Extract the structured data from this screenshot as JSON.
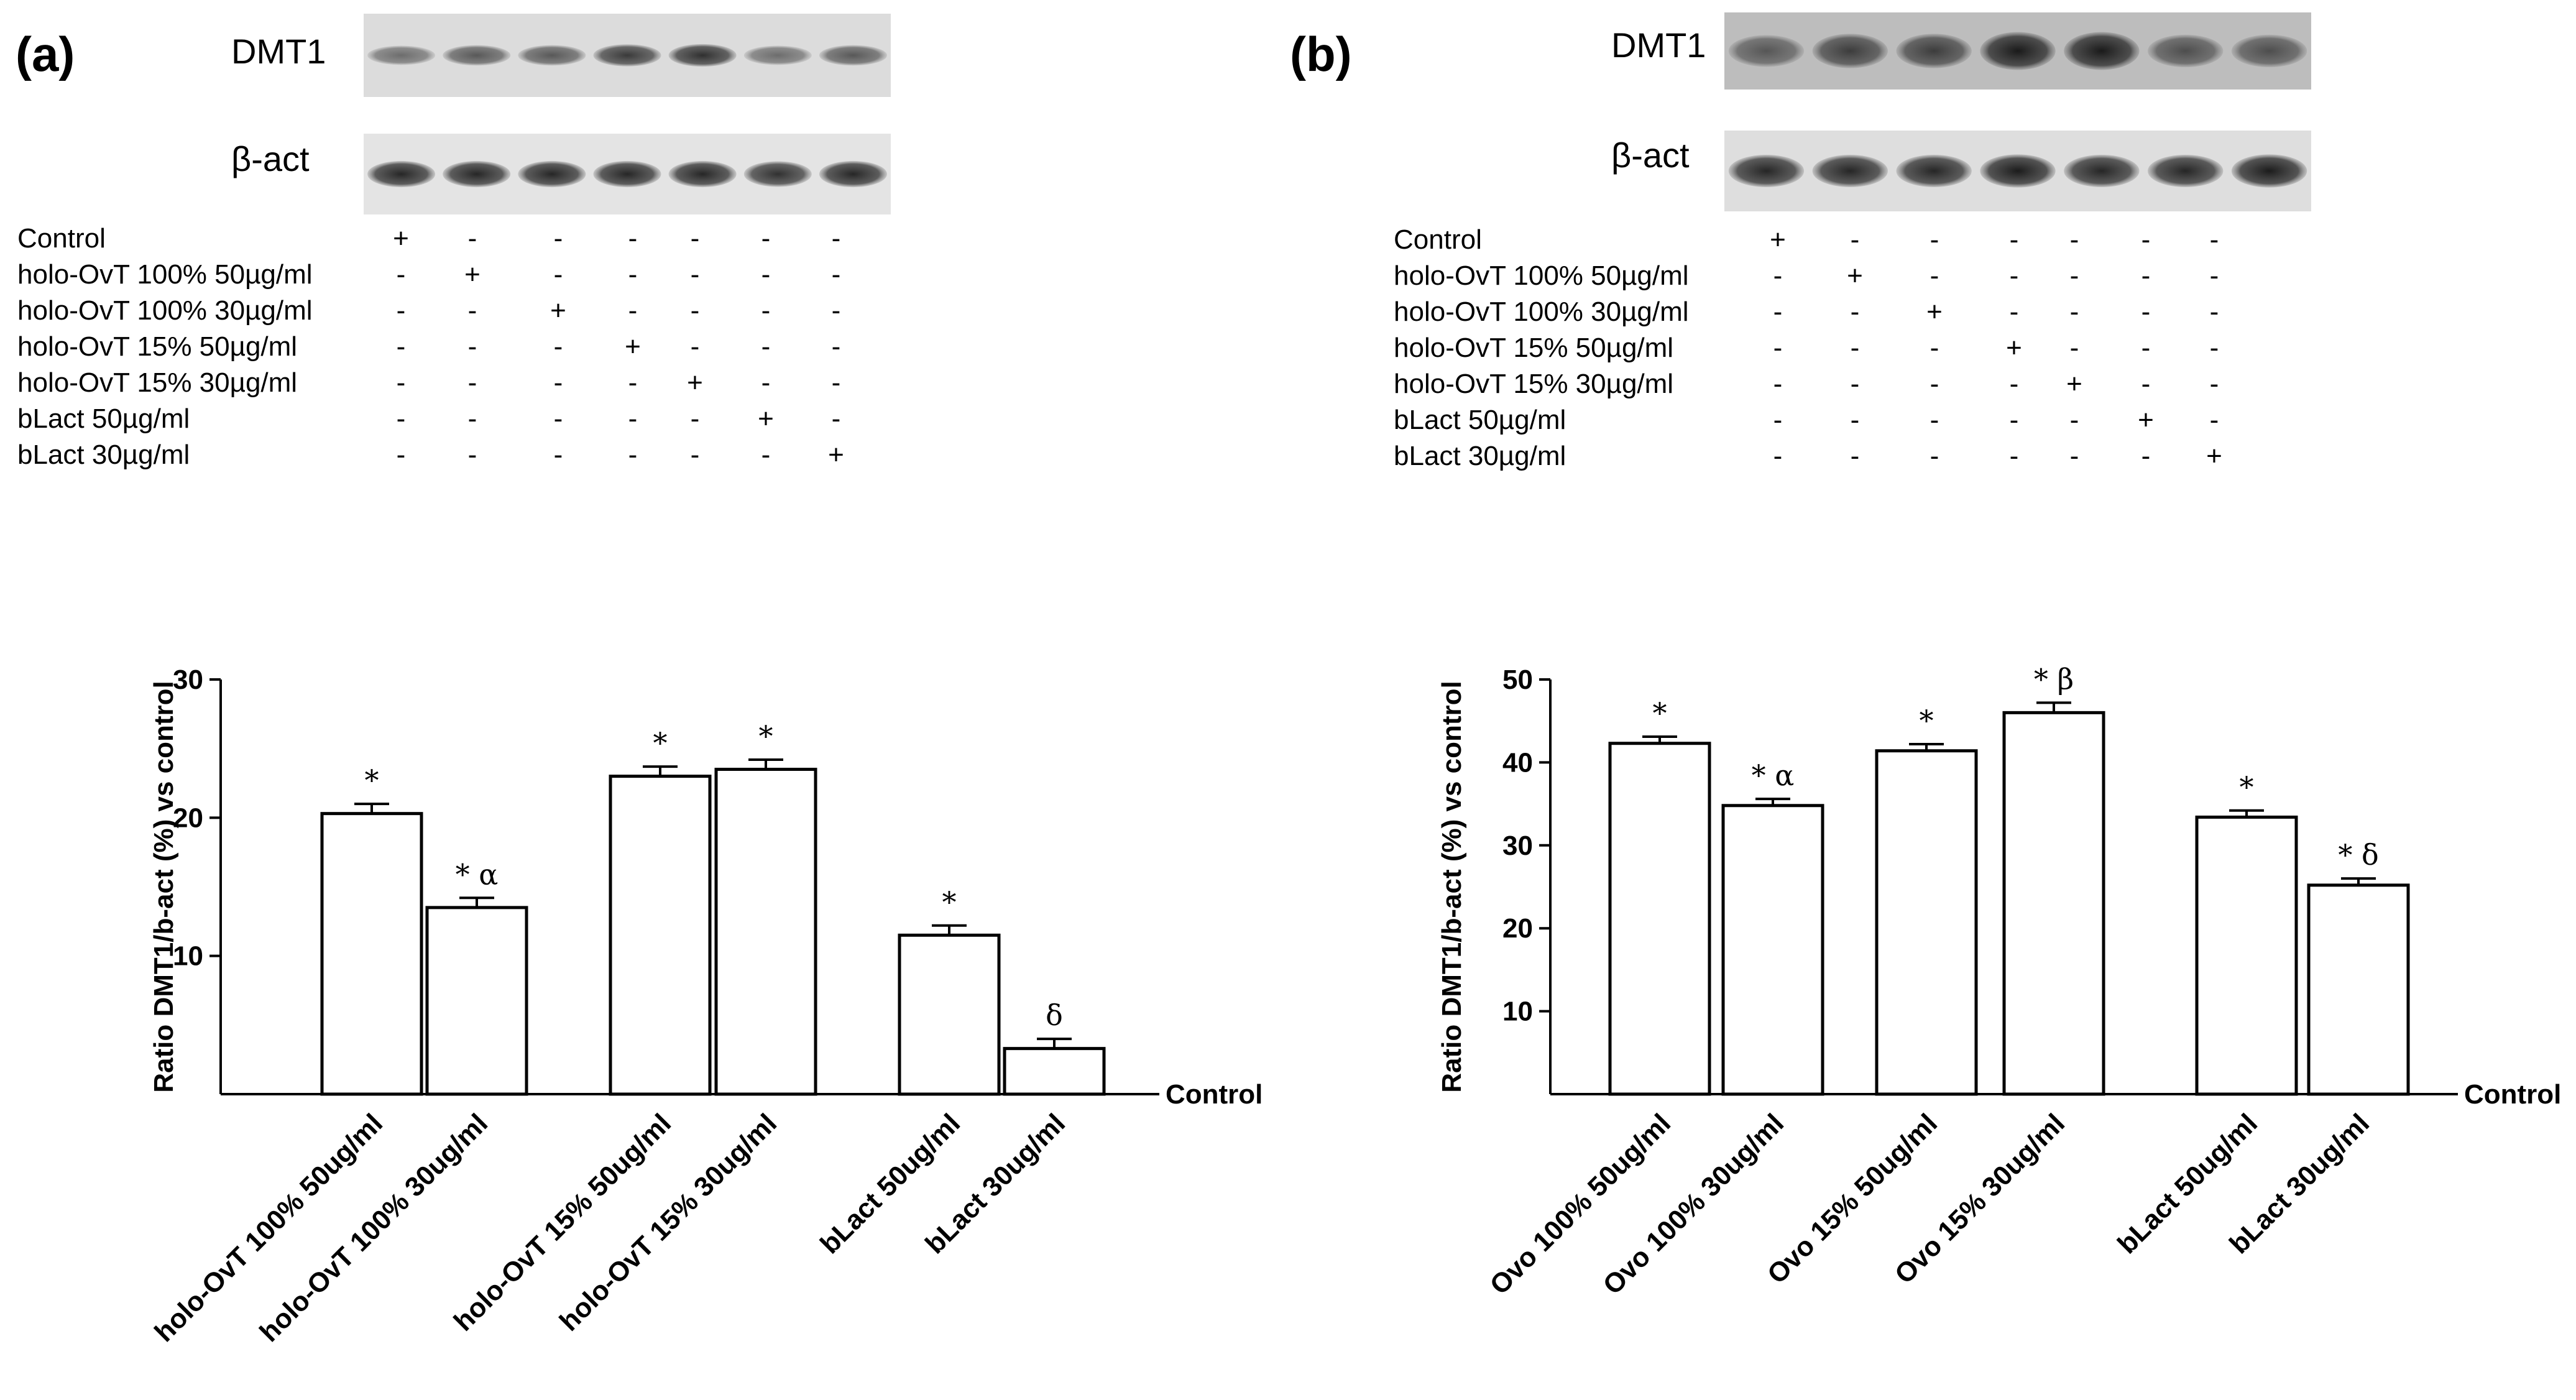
{
  "panels": [
    {
      "label": "(a)",
      "blot": {
        "protein_label": "DMT1",
        "loading_label": "β-act",
        "conditions": [
          {
            "label": "Control",
            "marks": [
              "+",
              "-",
              "-",
              "-",
              "-",
              "-",
              "-"
            ]
          },
          {
            "label": "holo-OvT 100% 50µg/ml",
            "marks": [
              "-",
              "+",
              "-",
              "-",
              "-",
              "-",
              "-"
            ]
          },
          {
            "label": "holo-OvT 100% 30µg/ml",
            "marks": [
              "-",
              "-",
              "+",
              "-",
              "-",
              "-",
              "-"
            ]
          },
          {
            "label": "holo-OvT 15% 50µg/ml",
            "marks": [
              "-",
              "-",
              "-",
              "+",
              "-",
              "-",
              "-"
            ]
          },
          {
            "label": "holo-OvT 15% 30µg/ml",
            "marks": [
              "-",
              "-",
              "-",
              "-",
              "+",
              "-",
              "-"
            ]
          },
          {
            "label": "bLact 50µg/ml",
            "marks": [
              "-",
              "-",
              "-",
              "-",
              "-",
              "+",
              "-"
            ]
          },
          {
            "label": "bLact 30µg/ml",
            "marks": [
              "-",
              "-",
              "-",
              "-",
              "-",
              "-",
              "+"
            ]
          }
        ],
        "dmt1_band_intensity": [
          0.55,
          0.65,
          0.65,
          0.8,
          0.85,
          0.55,
          0.65
        ],
        "actin_band_intensity": [
          0.9,
          0.9,
          0.9,
          0.9,
          0.9,
          0.85,
          0.9
        ]
      }
    },
    {
      "label": "(b)",
      "blot": {
        "protein_label": "DMT1",
        "loading_label": "β-act",
        "conditions": [
          {
            "label": "Control",
            "marks": [
              "+",
              "-",
              "-",
              "-",
              "-",
              "-",
              "-"
            ]
          },
          {
            "label": "holo-OvT 100% 50µg/ml",
            "marks": [
              "-",
              "+",
              "-",
              "-",
              "-",
              "-",
              "-"
            ]
          },
          {
            "label": "holo-OvT 100% 30µg/ml",
            "marks": [
              "-",
              "-",
              "+",
              "-",
              "-",
              "-",
              "-"
            ]
          },
          {
            "label": "holo-OvT 15% 50µg/ml",
            "marks": [
              "-",
              "-",
              "-",
              "+",
              "-",
              "-",
              "-"
            ]
          },
          {
            "label": "holo-OvT 15% 30µg/ml",
            "marks": [
              "-",
              "-",
              "-",
              "-",
              "+",
              "-",
              "-"
            ]
          },
          {
            "label": "bLact 50µg/ml",
            "marks": [
              "-",
              "-",
              "-",
              "-",
              "-",
              "+",
              "-"
            ]
          },
          {
            "label": "bLact 30µg/ml",
            "marks": [
              "-",
              "-",
              "-",
              "-",
              "-",
              "-",
              "+"
            ]
          }
        ],
        "dmt1_band_intensity": [
          0.6,
          0.75,
          0.75,
          0.95,
          0.95,
          0.65,
          0.65
        ],
        "actin_band_intensity": [
          0.9,
          0.9,
          0.9,
          0.95,
          0.9,
          0.9,
          0.95
        ]
      }
    }
  ],
  "chart_data": [
    {
      "type": "bar",
      "panel": "(a)",
      "ylabel": "Ratio DMT1/b-act (%) vs control",
      "baseline_label": "Control",
      "ylim": [
        0,
        30
      ],
      "yticks": [
        10,
        20,
        30
      ],
      "categories": [
        "holo-OvT 100% 50ug/ml",
        "holo-OvT 100% 30ug/ml",
        "holo-OvT 15% 50ug/ml",
        "holo-OvT 15% 30ug/ml",
        "bLact 50ug/ml",
        "bLact 30ug/ml"
      ],
      "groups": [
        [
          0,
          1
        ],
        [
          2,
          3
        ],
        [
          4,
          5
        ]
      ],
      "values": [
        20.3,
        13.5,
        23.0,
        23.5,
        11.5,
        3.3
      ],
      "errors": [
        0.7,
        0.7,
        0.7,
        0.7,
        0.7,
        0.7
      ],
      "annotations": [
        "*",
        "* α",
        "*",
        "*",
        "*",
        "δ"
      ],
      "grid": false,
      "legend": "none"
    },
    {
      "type": "bar",
      "panel": "(b)",
      "ylabel": "Ratio DMT1/b-act (%) vs control",
      "baseline_label": "Control",
      "ylim": [
        0,
        50
      ],
      "yticks": [
        10,
        20,
        30,
        40,
        50
      ],
      "categories": [
        "Ovo 100% 50ug/ml",
        "Ovo 100% 30ug/ml",
        "Ovo 15% 50ug/ml",
        "Ovo 15% 30ug/ml",
        "bLact 50ug/ml",
        "bLact 30ug/ml"
      ],
      "groups": [
        [
          0,
          1
        ],
        [
          2,
          3
        ],
        [
          4,
          5
        ]
      ],
      "values": [
        42.3,
        34.8,
        41.4,
        46.0,
        33.4,
        25.2
      ],
      "errors": [
        0.8,
        0.8,
        0.8,
        1.2,
        0.8,
        0.8
      ],
      "annotations": [
        "*",
        "* α",
        "*",
        "* β",
        "*",
        "* δ"
      ],
      "grid": false,
      "legend": "none"
    }
  ]
}
